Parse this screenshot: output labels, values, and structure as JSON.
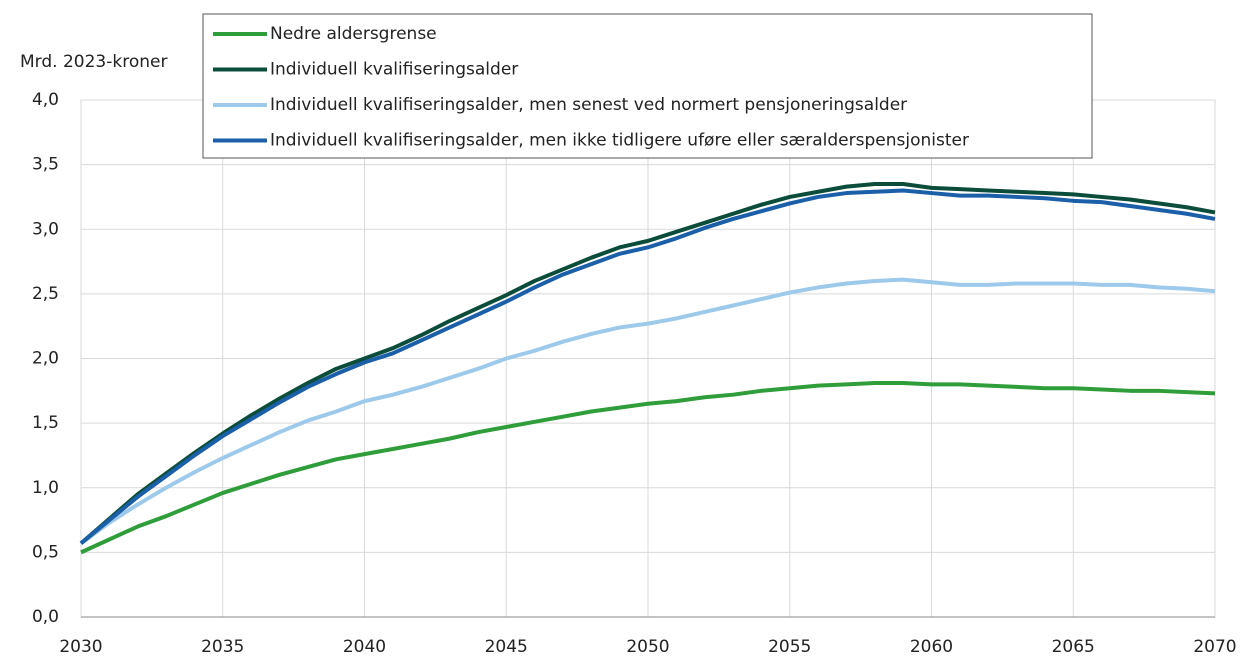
{
  "chart_data": {
    "type": "line",
    "y_label": "Mrd. 2023-kroner",
    "x": [
      2030,
      2031,
      2032,
      2033,
      2034,
      2035,
      2036,
      2037,
      2038,
      2039,
      2040,
      2041,
      2042,
      2043,
      2044,
      2045,
      2046,
      2047,
      2048,
      2049,
      2050,
      2051,
      2052,
      2053,
      2054,
      2055,
      2056,
      2057,
      2058,
      2059,
      2060,
      2061,
      2062,
      2063,
      2064,
      2065,
      2066,
      2067,
      2068,
      2069,
      2070
    ],
    "series": [
      {
        "name": "Nedre aldersgrense",
        "color": "#2f9e3a",
        "values": [
          0.5,
          0.6,
          0.7,
          0.78,
          0.87,
          0.96,
          1.03,
          1.1,
          1.16,
          1.22,
          1.26,
          1.3,
          1.34,
          1.38,
          1.43,
          1.47,
          1.51,
          1.55,
          1.59,
          1.62,
          1.65,
          1.67,
          1.7,
          1.72,
          1.75,
          1.77,
          1.79,
          1.8,
          1.81,
          1.81,
          1.8,
          1.8,
          1.79,
          1.78,
          1.77,
          1.77,
          1.76,
          1.75,
          1.75,
          1.74,
          1.73
        ]
      },
      {
        "name": "Individuell kvalifiseringsalder",
        "color": "#0b4d3a",
        "values": [
          0.57,
          0.76,
          0.95,
          1.11,
          1.27,
          1.42,
          1.56,
          1.69,
          1.81,
          1.92,
          2.0,
          2.08,
          2.18,
          2.29,
          2.39,
          2.49,
          2.6,
          2.69,
          2.78,
          2.86,
          2.91,
          2.98,
          3.05,
          3.12,
          3.19,
          3.25,
          3.29,
          3.33,
          3.35,
          3.35,
          3.32,
          3.31,
          3.3,
          3.29,
          3.28,
          3.27,
          3.25,
          3.23,
          3.2,
          3.17,
          3.13
        ]
      },
      {
        "name": "Individuell kvalifiseringsalder, men senest ved normert pensjoneringsalder",
        "color": "#9dc9ea",
        "values": [
          0.57,
          0.73,
          0.87,
          1.0,
          1.12,
          1.23,
          1.33,
          1.43,
          1.52,
          1.59,
          1.67,
          1.72,
          1.78,
          1.85,
          1.92,
          2.0,
          2.06,
          2.13,
          2.19,
          2.24,
          2.27,
          2.31,
          2.36,
          2.41,
          2.46,
          2.51,
          2.55,
          2.58,
          2.6,
          2.61,
          2.59,
          2.57,
          2.57,
          2.58,
          2.58,
          2.58,
          2.57,
          2.57,
          2.55,
          2.54,
          2.52
        ]
      },
      {
        "name": "Individuell kvalifiseringsalder, men ikke tidligere uføre eller særalderspensjonister",
        "color": "#1a5fa8",
        "values": [
          0.57,
          0.75,
          0.93,
          1.09,
          1.25,
          1.4,
          1.53,
          1.66,
          1.78,
          1.88,
          1.97,
          2.04,
          2.14,
          2.24,
          2.34,
          2.44,
          2.55,
          2.65,
          2.73,
          2.81,
          2.86,
          2.93,
          3.01,
          3.08,
          3.14,
          3.2,
          3.25,
          3.28,
          3.29,
          3.3,
          3.28,
          3.26,
          3.26,
          3.25,
          3.24,
          3.22,
          3.21,
          3.18,
          3.15,
          3.12,
          3.08
        ]
      }
    ],
    "xlim": [
      2030,
      2070
    ],
    "xticks": [
      2030,
      2035,
      2040,
      2045,
      2050,
      2055,
      2060,
      2065,
      2070
    ],
    "ylim": [
      0,
      4
    ],
    "yticks": [
      {
        "value": 0,
        "label": "0,0"
      },
      {
        "value": 0.5,
        "label": "0,5"
      },
      {
        "value": 1,
        "label": "1,0"
      },
      {
        "value": 1.5,
        "label": "1,5"
      },
      {
        "value": 2,
        "label": "2,0"
      },
      {
        "value": 2.5,
        "label": "2,5"
      },
      {
        "value": 3,
        "label": "3,0"
      },
      {
        "value": 3.5,
        "label": "3,5"
      },
      {
        "value": 4,
        "label": "4,0"
      }
    ],
    "grid": true,
    "legend_position": "top"
  }
}
